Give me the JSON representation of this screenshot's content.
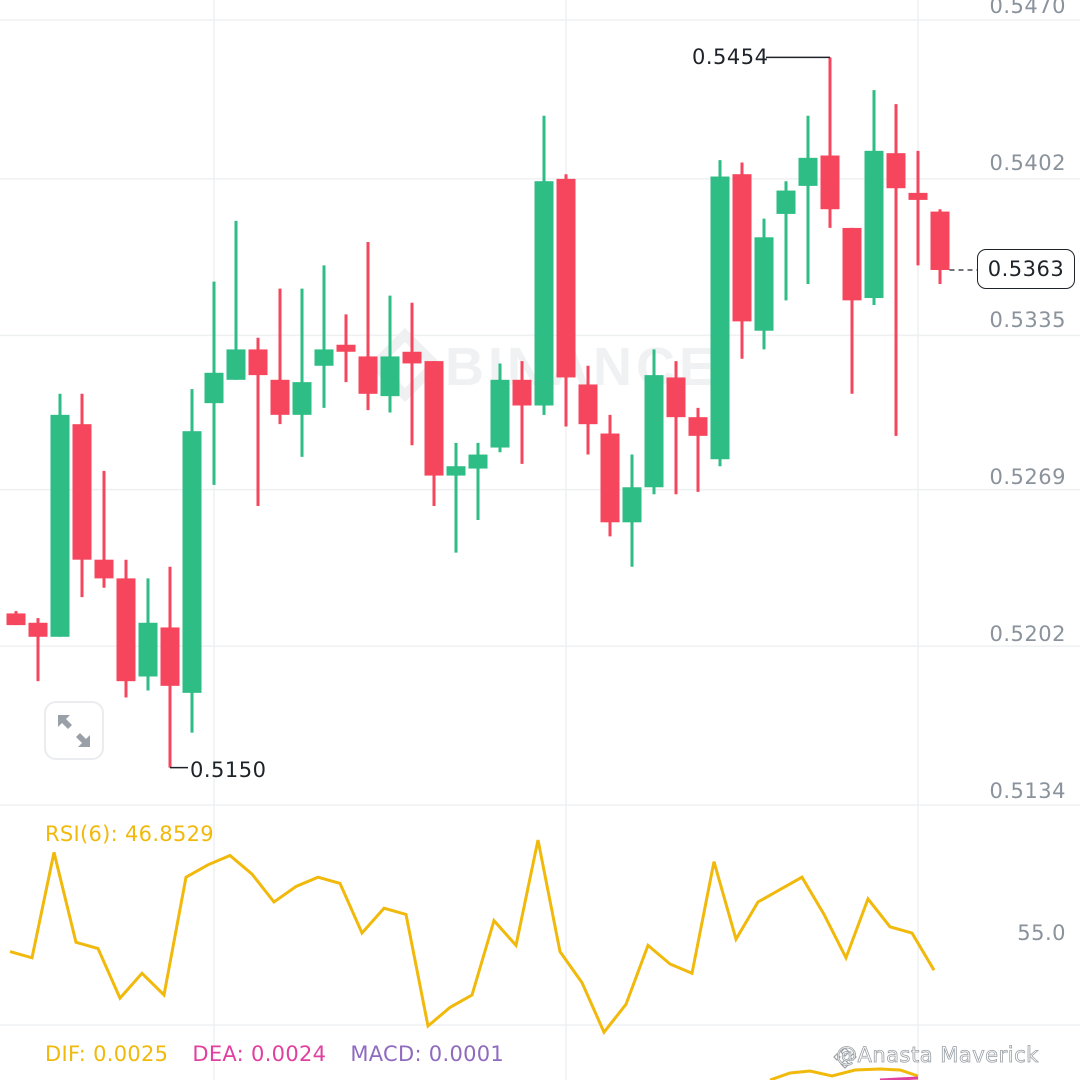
{
  "chart_data": {
    "type": "candlestick",
    "title": "",
    "price_axis": {
      "ticks": [
        "0.5470",
        "0.5402",
        "0.5335",
        "0.5269",
        "0.5202",
        "0.5134"
      ],
      "ylim": [
        0.5134,
        0.547
      ],
      "position": "right"
    },
    "last_price": "0.5363",
    "annotations": {
      "high": "0.5454",
      "low": "0.5150"
    },
    "colors": {
      "up": "#2ebd85",
      "down": "#f6465d",
      "grid": "#eef0f2"
    },
    "candles": [
      {
        "dir": "down",
        "open": 0.5216,
        "close": 0.5211,
        "high": 0.5217,
        "low": 0.5211
      },
      {
        "dir": "down",
        "open": 0.5212,
        "close": 0.5206,
        "high": 0.5214,
        "low": 0.5187
      },
      {
        "dir": "up",
        "open": 0.5206,
        "close": 0.5301,
        "high": 0.531,
        "low": 0.5206
      },
      {
        "dir": "down",
        "open": 0.5297,
        "close": 0.5239,
        "high": 0.531,
        "low": 0.5223
      },
      {
        "dir": "down",
        "open": 0.5239,
        "close": 0.5231,
        "high": 0.5277,
        "low": 0.5227
      },
      {
        "dir": "down",
        "open": 0.5231,
        "close": 0.5187,
        "high": 0.5239,
        "low": 0.518
      },
      {
        "dir": "up",
        "open": 0.5189,
        "close": 0.5212,
        "high": 0.5231,
        "low": 0.5183
      },
      {
        "dir": "down",
        "open": 0.521,
        "close": 0.5185,
        "high": 0.5236,
        "low": 0.515
      },
      {
        "dir": "up",
        "open": 0.5182,
        "close": 0.5294,
        "high": 0.5312,
        "low": 0.5165
      },
      {
        "dir": "up",
        "open": 0.5306,
        "close": 0.5319,
        "high": 0.5358,
        "low": 0.5271
      },
      {
        "dir": "up",
        "open": 0.5316,
        "close": 0.5329,
        "high": 0.5384,
        "low": 0.5316
      },
      {
        "dir": "down",
        "open": 0.5329,
        "close": 0.5318,
        "high": 0.5334,
        "low": 0.5262
      },
      {
        "dir": "down",
        "open": 0.5316,
        "close": 0.5301,
        "high": 0.5355,
        "low": 0.5297
      },
      {
        "dir": "up",
        "open": 0.5301,
        "close": 0.5315,
        "high": 0.5355,
        "low": 0.5283
      },
      {
        "dir": "up",
        "open": 0.5322,
        "close": 0.5329,
        "high": 0.5365,
        "low": 0.5304
      },
      {
        "dir": "down",
        "open": 0.5331,
        "close": 0.5328,
        "high": 0.5344,
        "low": 0.5315
      },
      {
        "dir": "down",
        "open": 0.5326,
        "close": 0.531,
        "high": 0.5375,
        "low": 0.5303
      },
      {
        "dir": "up",
        "open": 0.5309,
        "close": 0.5326,
        "high": 0.5352,
        "low": 0.5302
      },
      {
        "dir": "down",
        "open": 0.5328,
        "close": 0.5323,
        "high": 0.5349,
        "low": 0.5288
      },
      {
        "dir": "down",
        "open": 0.5324,
        "close": 0.5275,
        "high": 0.5324,
        "low": 0.5262
      },
      {
        "dir": "up",
        "open": 0.5275,
        "close": 0.5279,
        "high": 0.5289,
        "low": 0.5242
      },
      {
        "dir": "up",
        "open": 0.5278,
        "close": 0.5284,
        "high": 0.5289,
        "low": 0.5256
      },
      {
        "dir": "up",
        "open": 0.5287,
        "close": 0.5316,
        "high": 0.5323,
        "low": 0.5285
      },
      {
        "dir": "down",
        "open": 0.5316,
        "close": 0.5305,
        "high": 0.5324,
        "low": 0.528
      },
      {
        "dir": "up",
        "open": 0.5305,
        "close": 0.5401,
        "high": 0.5429,
        "low": 0.5301
      },
      {
        "dir": "down",
        "open": 0.5402,
        "close": 0.5317,
        "high": 0.5404,
        "low": 0.5296
      },
      {
        "dir": "down",
        "open": 0.5314,
        "close": 0.5297,
        "high": 0.5322,
        "low": 0.5284
      },
      {
        "dir": "down",
        "open": 0.5293,
        "close": 0.5255,
        "high": 0.5301,
        "low": 0.5249
      },
      {
        "dir": "up",
        "open": 0.5255,
        "close": 0.527,
        "high": 0.5284,
        "low": 0.5236
      },
      {
        "dir": "up",
        "open": 0.527,
        "close": 0.5318,
        "high": 0.5329,
        "low": 0.5267
      },
      {
        "dir": "down",
        "open": 0.5317,
        "close": 0.53,
        "high": 0.5324,
        "low": 0.5267
      },
      {
        "dir": "down",
        "open": 0.53,
        "close": 0.5292,
        "high": 0.5304,
        "low": 0.5268
      },
      {
        "dir": "up",
        "open": 0.5282,
        "close": 0.5403,
        "high": 0.541,
        "low": 0.5279
      },
      {
        "dir": "down",
        "open": 0.5404,
        "close": 0.5341,
        "high": 0.5409,
        "low": 0.5325
      },
      {
        "dir": "up",
        "open": 0.5337,
        "close": 0.5377,
        "high": 0.5385,
        "low": 0.5329
      },
      {
        "dir": "up",
        "open": 0.5387,
        "close": 0.5397,
        "high": 0.5401,
        "low": 0.535
      },
      {
        "dir": "up",
        "open": 0.5399,
        "close": 0.5411,
        "high": 0.5429,
        "low": 0.5357
      },
      {
        "dir": "down",
        "open": 0.5412,
        "close": 0.5389,
        "high": 0.5454,
        "low": 0.5381
      },
      {
        "dir": "down",
        "open": 0.5381,
        "close": 0.535,
        "high": 0.5381,
        "low": 0.531
      },
      {
        "dir": "up",
        "open": 0.5351,
        "close": 0.5414,
        "high": 0.544,
        "low": 0.5348
      },
      {
        "dir": "down",
        "open": 0.5413,
        "close": 0.5398,
        "high": 0.5434,
        "low": 0.5292
      },
      {
        "dir": "down",
        "open": 0.5396,
        "close": 0.5393,
        "high": 0.5414,
        "low": 0.5365
      },
      {
        "dir": "down",
        "open": 0.5388,
        "close": 0.5363,
        "high": 0.5389,
        "low": 0.5357
      }
    ],
    "rsi": {
      "label": "RSI(6): 46.8529",
      "tick": "55.0",
      "values": [
        52.0,
        51.0,
        68.0,
        53.5,
        52.5,
        44.5,
        48.5,
        45.0,
        64.0,
        66.0,
        67.5,
        64.5,
        60.0,
        62.5,
        64.0,
        63.0,
        55.0,
        59.0,
        58.0,
        40.0,
        43.0,
        45.0,
        57.0,
        53.0,
        70.0,
        52.0,
        47.0,
        39.0,
        43.5,
        53.0,
        50.0,
        48.5,
        66.5,
        54.0,
        60.0,
        62.0,
        64.0,
        58.0,
        51.0,
        60.5,
        56.0,
        55.0,
        49.0
      ]
    },
    "macd": {
      "dif": "DIF: 0.0025",
      "dea": "DEA: 0.0024",
      "macd": "MACD: 0.0001"
    }
  },
  "ui": {
    "expand_icon": "expand-diagonal-arrows-icon",
    "watermark": "@Anasta Maverick",
    "watermark_icon": "binance-logo-icon",
    "background_watermark": "BINANCE"
  }
}
